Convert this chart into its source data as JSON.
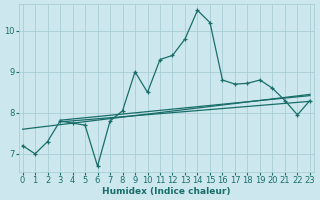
{
  "xlabel": "Humidex (Indice chaleur)",
  "bg_color": "#cce8ee",
  "grid_color": "#aacdd5",
  "line_color": "#1a6e6a",
  "x_main": [
    0,
    1,
    2,
    3,
    4,
    5,
    6,
    7,
    8,
    9,
    10,
    11,
    12,
    13,
    14,
    15,
    16,
    17,
    18,
    19,
    20,
    21,
    22,
    23
  ],
  "y_main": [
    7.2,
    7.0,
    7.3,
    7.8,
    7.75,
    7.7,
    6.7,
    7.8,
    8.05,
    9.0,
    8.5,
    9.3,
    9.4,
    9.8,
    10.5,
    10.2,
    8.8,
    8.7,
    8.72,
    8.8,
    8.6,
    8.3,
    7.95,
    8.3
  ],
  "trend1_x": [
    0,
    23
  ],
  "trend1_y": [
    7.6,
    8.45
  ],
  "trend2_x": [
    3,
    23
  ],
  "trend2_y": [
    7.78,
    8.28
  ],
  "trend3_x": [
    3,
    23
  ],
  "trend3_y": [
    7.82,
    8.42
  ],
  "xlim": [
    -0.3,
    23.3
  ],
  "ylim": [
    6.55,
    10.65
  ],
  "yticks": [
    7,
    8,
    9,
    10
  ],
  "xticks": [
    0,
    1,
    2,
    3,
    4,
    5,
    6,
    7,
    8,
    9,
    10,
    11,
    12,
    13,
    14,
    15,
    16,
    17,
    18,
    19,
    20,
    21,
    22,
    23
  ],
  "label_fontsize": 6.5,
  "tick_fontsize": 6.0
}
